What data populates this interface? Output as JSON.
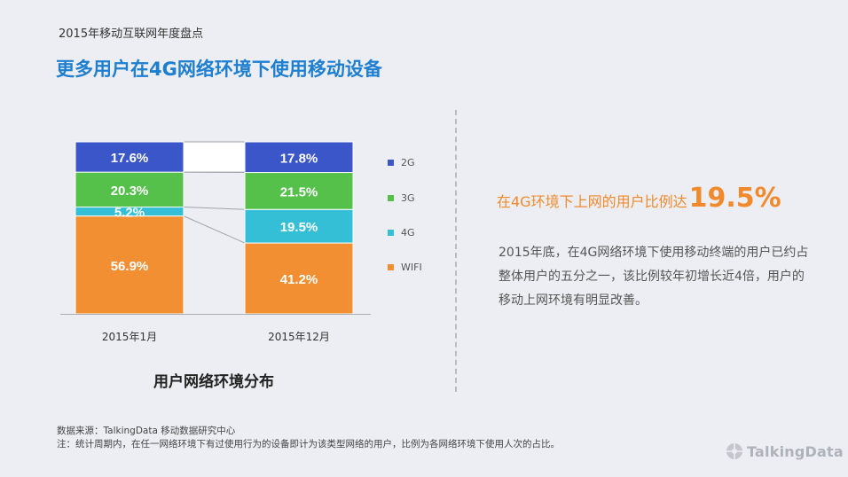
{
  "header": {
    "report_label": "2015年移动互联网年度盘点",
    "title": "更多用户在4G网络环境下使用移动设备"
  },
  "chart_data": {
    "type": "bar",
    "stacked": true,
    "percent_stacked": true,
    "title": "用户网络环境分布",
    "categories": [
      "2015年1月",
      "2015年12月"
    ],
    "series": [
      {
        "name": "WIFI",
        "values": [
          56.9,
          41.2
        ],
        "labels": [
          "56.9%",
          "41.2%"
        ],
        "color": "#f18f32"
      },
      {
        "name": "4G",
        "values": [
          5.2,
          19.5
        ],
        "labels": [
          "5.2%",
          "19.5%"
        ],
        "color": "#34bfd6"
      },
      {
        "name": "3G",
        "values": [
          20.3,
          21.5
        ],
        "labels": [
          "20.3%",
          "21.5%"
        ],
        "color": "#55c14a"
      },
      {
        "name": "2G",
        "values": [
          17.6,
          17.8
        ],
        "labels": [
          "17.6%",
          "17.8%"
        ],
        "color": "#3b56c8"
      }
    ],
    "legend_order": [
      "2G",
      "3G",
      "4G",
      "WIFI"
    ],
    "legend_position": "right",
    "connector_lines": true
  },
  "highlight": {
    "lead": "在4G环境下上网的用户比例达",
    "value": "19.5%",
    "color": "#f08a2c"
  },
  "summary": "2015年底，在4G网络环境下使用移动终端的用户已约占整体用户的五分之一，该比例较年初增长近4倍，用户的移动上网环境有明显改善。",
  "footer": {
    "source": "数据来源：TalkingData 移动数据研究中心",
    "note": "注：统计周期内，在任一网络环境下有过使用行为的设备即计为该类型网络的用户，比例为各网络环境下使用人次的占比。",
    "brand": "TalkingData"
  }
}
